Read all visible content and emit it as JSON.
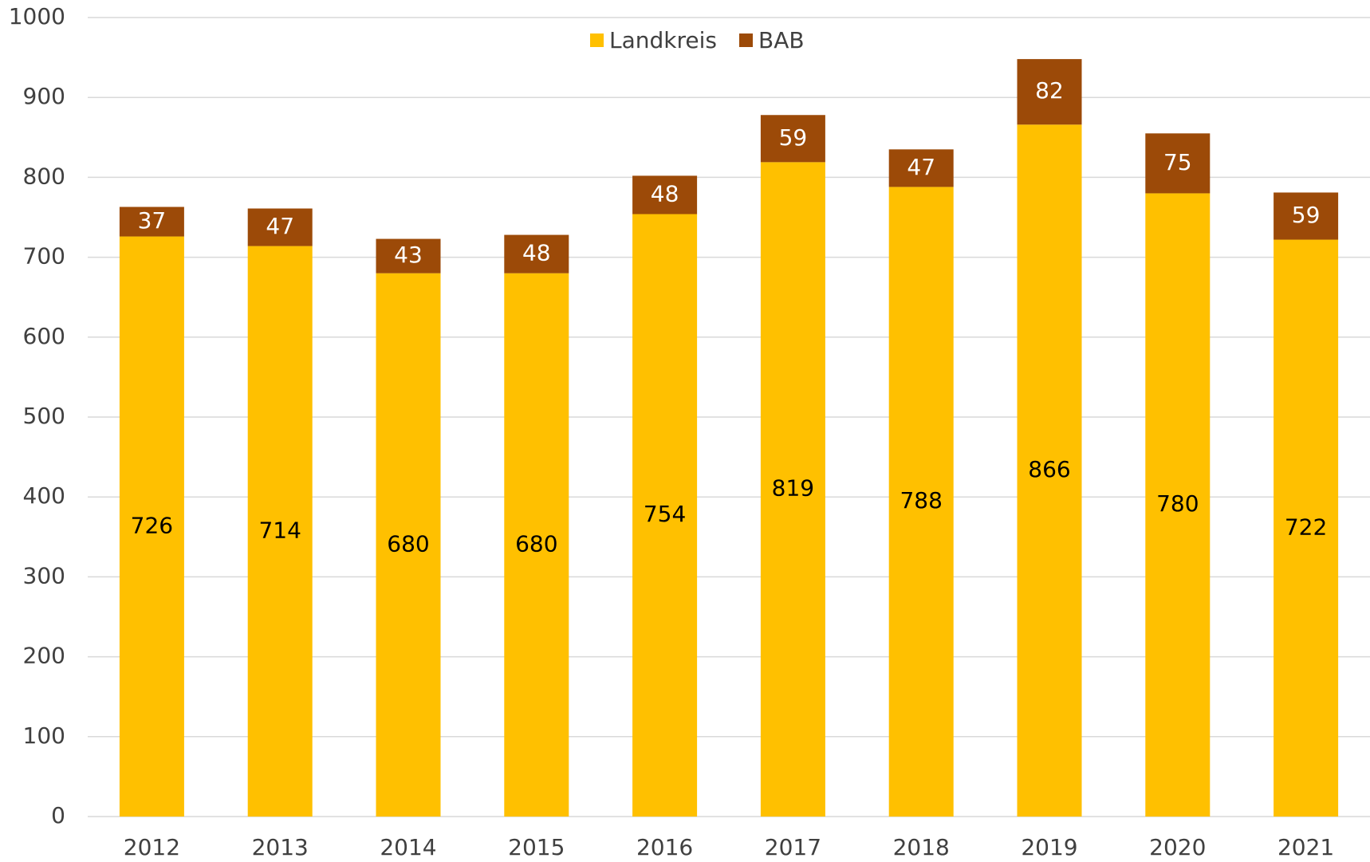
{
  "chart_data": {
    "type": "stacked_bar",
    "categories": [
      "2012",
      "2013",
      "2014",
      "2015",
      "2016",
      "2017",
      "2018",
      "2019",
      "2020",
      "2021"
    ],
    "series": [
      {
        "name": "Landkreis",
        "color": "#ffc000",
        "label_color": "#000000",
        "values": [
          726,
          714,
          680,
          680,
          754,
          819,
          788,
          866,
          780,
          722
        ]
      },
      {
        "name": "BAB",
        "color": "#9c4a08",
        "label_color": "#ffffff",
        "values": [
          37,
          47,
          43,
          48,
          48,
          59,
          47,
          82,
          75,
          59
        ]
      }
    ],
    "ylim": [
      0,
      1000
    ],
    "yticks": [
      0,
      100,
      200,
      300,
      400,
      500,
      600,
      700,
      800,
      900,
      1000
    ],
    "grid": true,
    "legend": "top"
  }
}
